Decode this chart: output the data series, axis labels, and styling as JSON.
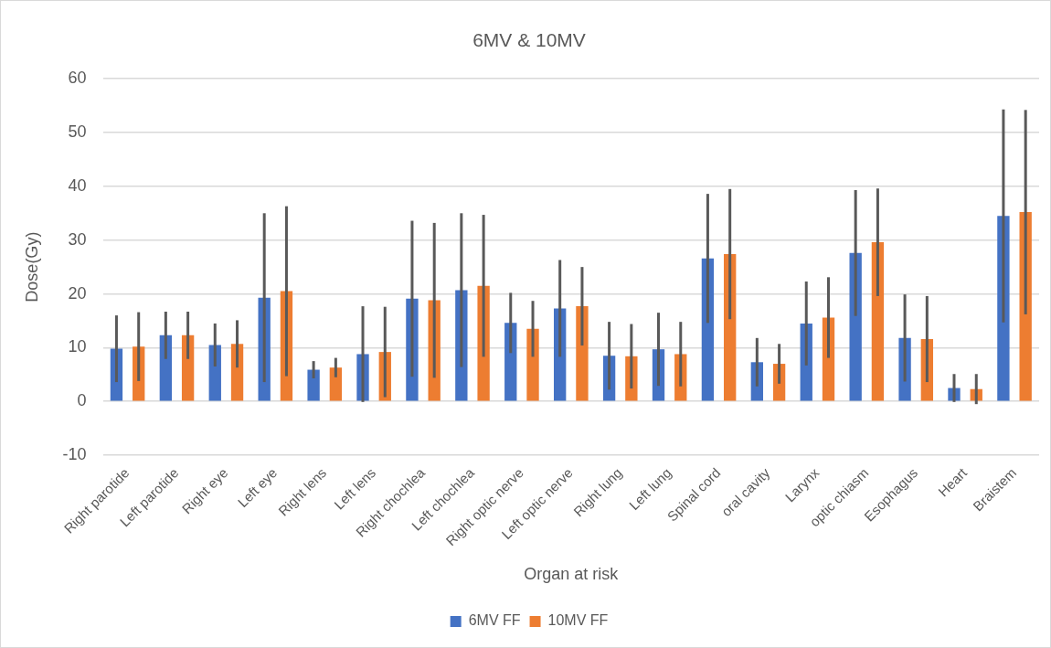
{
  "chart_data": {
    "type": "bar",
    "title": "6MV & 10MV",
    "xlabel": "Organ at risk",
    "ylabel": "Dose(Gy)",
    "categories": [
      "Right parotide",
      "Left parotide",
      "Right eye",
      "Left eye",
      "Right lens",
      "Left lens",
      "Right chochlea",
      "Left chochlea",
      "Right optic nerve",
      "Left optic nerve",
      "Right lung",
      "Left lung",
      "Spinal cord",
      "oral cavity",
      "Larynx",
      "optic chiasm",
      "Esophagus",
      "Heart",
      "Braistem"
    ],
    "series": [
      {
        "name": "6MV FF",
        "color": "#4472c4",
        "values": [
          9.8,
          12.3,
          10.5,
          19.3,
          5.9,
          8.8,
          19.1,
          20.7,
          14.6,
          17.3,
          8.5,
          9.7,
          26.6,
          7.3,
          14.5,
          27.6,
          11.8,
          2.5,
          34.5
        ],
        "errors": [
          6.2,
          4.4,
          4,
          15.7,
          1.6,
          8.9,
          14.5,
          14.3,
          5.6,
          9,
          6.3,
          6.8,
          12,
          4.5,
          7.8,
          11.7,
          8.1,
          2.6,
          19.8
        ]
      },
      {
        "name": "10MV FF",
        "color": "#ed7d31",
        "values": [
          10.2,
          12.3,
          10.7,
          20.5,
          6.3,
          9.2,
          18.8,
          21.5,
          13.5,
          17.7,
          8.4,
          8.8,
          27.4,
          7.0,
          15.6,
          29.6,
          11.6,
          2.3,
          35.2
        ],
        "errors": [
          6.4,
          4.4,
          4.4,
          15.8,
          1.8,
          8.4,
          14.4,
          13.2,
          5.2,
          7.3,
          6,
          6,
          12.1,
          3.7,
          7.5,
          10,
          8,
          2.8,
          19
        ]
      }
    ],
    "ylim": [
      -10,
      60
    ],
    "yticks": [
      -10,
      0,
      10,
      20,
      30,
      40,
      50,
      60
    ],
    "grid": "y",
    "legend": "bottom"
  }
}
